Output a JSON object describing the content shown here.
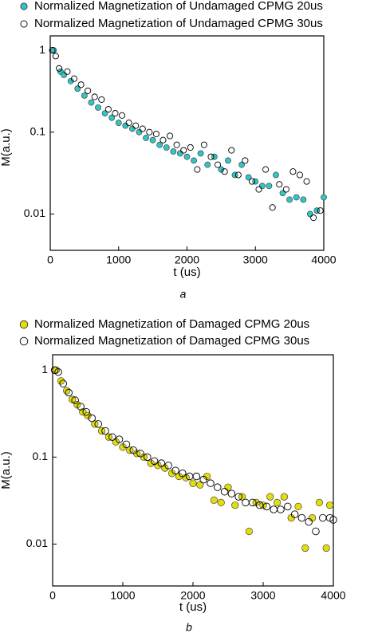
{
  "chart_data": [
    {
      "type": "scatter",
      "caption": "a",
      "x_label": "t (us)",
      "y_label": "M(a.u.)",
      "log_y": true,
      "xlim": [
        0,
        4000
      ],
      "xticks": [
        0,
        1000,
        2000,
        3000,
        4000
      ],
      "ylim": [
        0.0036,
        1.5
      ],
      "yticks": [
        1,
        0.1,
        0.01
      ],
      "series": [
        {
          "name": "Normalized Magnetization of Undamaged CPMG 20us",
          "color": "#35c4c4",
          "filled": true,
          "x": [
            50,
            150,
            200,
            300,
            400,
            500,
            600,
            700,
            800,
            900,
            1000,
            1100,
            1200,
            1300,
            1400,
            1500,
            1600,
            1700,
            1800,
            1900,
            2000,
            2100,
            2200,
            2300,
            2400,
            2500,
            2600,
            2700,
            2800,
            2900,
            3000,
            3100,
            3200,
            3300,
            3400,
            3500,
            3600,
            3700,
            3800,
            3900,
            4000
          ],
          "values": [
            1.0,
            0.55,
            0.5,
            0.42,
            0.34,
            0.28,
            0.23,
            0.2,
            0.17,
            0.15,
            0.13,
            0.12,
            0.11,
            0.1,
            0.085,
            0.08,
            0.07,
            0.065,
            0.058,
            0.055,
            0.05,
            0.045,
            0.055,
            0.04,
            0.05,
            0.035,
            0.045,
            0.03,
            0.04,
            0.028,
            0.025,
            0.022,
            0.022,
            0.03,
            0.018,
            0.015,
            0.016,
            0.015,
            0.01,
            0.011,
            0.016
          ]
        },
        {
          "name": "Normalized Magnetization of Undamaged CPMG 30us",
          "color": "#000000",
          "filled": false,
          "x": [
            30,
            80,
            130,
            250,
            350,
            450,
            550,
            650,
            750,
            850,
            950,
            1050,
            1150,
            1250,
            1350,
            1450,
            1550,
            1650,
            1750,
            1850,
            1950,
            2050,
            2150,
            2250,
            2350,
            2450,
            2550,
            2650,
            2750,
            2850,
            2950,
            3050,
            3150,
            3250,
            3350,
            3450,
            3550,
            3650,
            3750,
            3850,
            3950
          ],
          "values": [
            1.0,
            0.85,
            0.6,
            0.55,
            0.45,
            0.38,
            0.32,
            0.27,
            0.25,
            0.19,
            0.17,
            0.16,
            0.13,
            0.12,
            0.11,
            0.1,
            0.095,
            0.08,
            0.09,
            0.07,
            0.06,
            0.065,
            0.035,
            0.07,
            0.05,
            0.04,
            0.033,
            0.06,
            0.03,
            0.045,
            0.025,
            0.02,
            0.035,
            0.012,
            0.023,
            0.02,
            0.033,
            0.03,
            0.025,
            0.009,
            0.011
          ]
        }
      ]
    },
    {
      "type": "scatter",
      "caption": "b",
      "x_label": "t (us)",
      "y_label": "M(a.u.)",
      "log_y": true,
      "xlim": [
        0,
        4000
      ],
      "xticks": [
        0,
        1000,
        2000,
        3000,
        4000
      ],
      "ylim": [
        0.0033,
        1.5
      ],
      "yticks": [
        1,
        0.1,
        0.01
      ],
      "series": [
        {
          "name": "Normalized Magnetization of Damaged CPMG 20us",
          "color": "#e3dc0f",
          "filled": true,
          "x": [
            50,
            120,
            200,
            280,
            350,
            430,
            500,
            600,
            700,
            800,
            900,
            1000,
            1100,
            1200,
            1300,
            1400,
            1500,
            1600,
            1700,
            1800,
            1900,
            2000,
            2100,
            2200,
            2300,
            2400,
            2500,
            2600,
            2700,
            2800,
            2900,
            3000,
            3100,
            3200,
            3300,
            3400,
            3500,
            3600,
            3700,
            3800,
            3900,
            3950
          ],
          "values": [
            1.0,
            0.75,
            0.58,
            0.46,
            0.4,
            0.33,
            0.3,
            0.24,
            0.2,
            0.17,
            0.15,
            0.13,
            0.12,
            0.11,
            0.1,
            0.085,
            0.08,
            0.075,
            0.065,
            0.06,
            0.058,
            0.05,
            0.048,
            0.06,
            0.032,
            0.03,
            0.045,
            0.028,
            0.035,
            0.014,
            0.03,
            0.028,
            0.035,
            0.03,
            0.035,
            0.02,
            0.027,
            0.009,
            0.02,
            0.03,
            0.009,
            0.028
          ]
        },
        {
          "name": "Normalized Magnetization of Damaged CPMG 30us",
          "color": "#000000",
          "filled": false,
          "x": [
            30,
            80,
            150,
            230,
            320,
            400,
            480,
            560,
            650,
            750,
            850,
            950,
            1050,
            1150,
            1250,
            1350,
            1450,
            1550,
            1650,
            1750,
            1850,
            1950,
            2050,
            2150,
            2250,
            2350,
            2450,
            2550,
            2650,
            2750,
            2850,
            2950,
            3050,
            3150,
            3250,
            3350,
            3450,
            3550,
            3650,
            3750,
            3850,
            3950,
            4000
          ],
          "values": [
            1.0,
            0.95,
            0.7,
            0.55,
            0.45,
            0.38,
            0.33,
            0.28,
            0.24,
            0.2,
            0.17,
            0.16,
            0.14,
            0.12,
            0.11,
            0.1,
            0.09,
            0.085,
            0.08,
            0.07,
            0.065,
            0.06,
            0.06,
            0.055,
            0.05,
            0.045,
            0.04,
            0.038,
            0.035,
            0.03,
            0.03,
            0.028,
            0.027,
            0.025,
            0.025,
            0.027,
            0.022,
            0.02,
            0.018,
            0.014,
            0.02,
            0.02,
            0.019
          ]
        }
      ]
    }
  ]
}
